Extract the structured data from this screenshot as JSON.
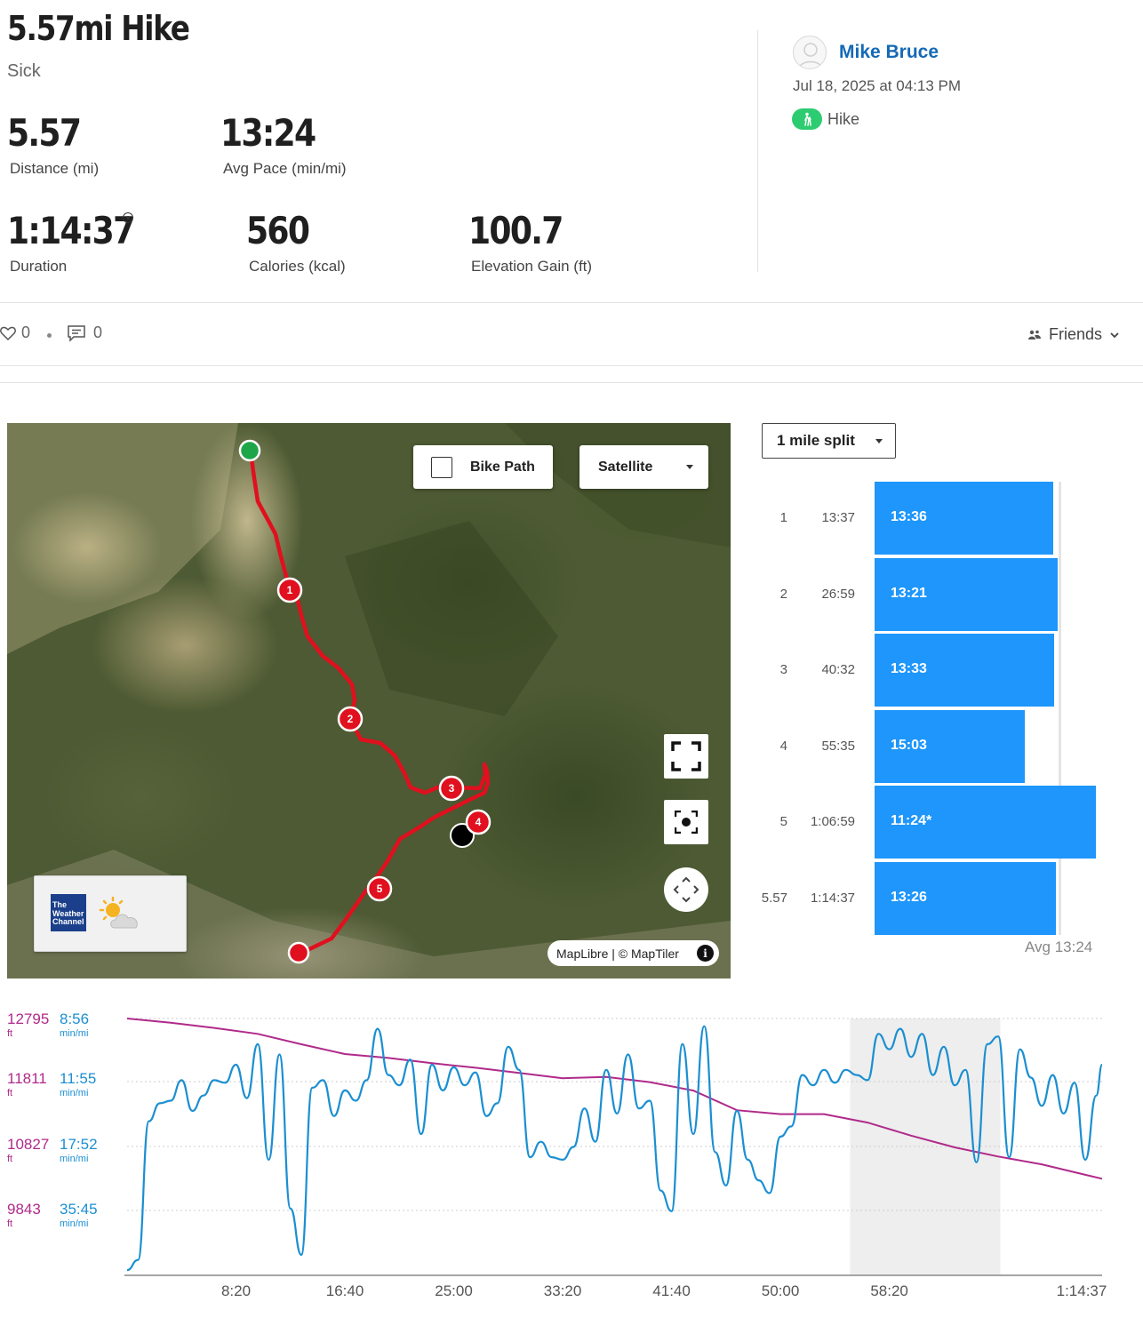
{
  "activity": {
    "title": "5.57mi Hike",
    "subtitle": "Sick"
  },
  "stats": {
    "distance": {
      "value": "5.57",
      "label": "Distance (mi)"
    },
    "avg_pace": {
      "value": "13:24",
      "label": "Avg Pace (min/mi)"
    },
    "duration": {
      "value": "1:14:37",
      "label": "Duration"
    },
    "calories": {
      "value": "560",
      "label": "Calories (kcal)"
    },
    "elevation_gain": {
      "value": "100.7",
      "label": "Elevation Gain (ft)"
    }
  },
  "user": {
    "name": "Mike Bruce",
    "datetime": "Jul 18, 2025 at 04:13 PM",
    "activity_type": "Hike",
    "activity_badge_color": "#2ecc71"
  },
  "social": {
    "likes": "0",
    "comments": "0",
    "privacy": "Friends"
  },
  "map": {
    "bike_path_label": "Bike Path",
    "bike_path_checked": false,
    "layer_select": "Satellite",
    "weather_brand": "The Weather Channel",
    "attribution": "MapLibre | © MapTiler",
    "info_glyph": "i",
    "route_color": "#e0101e",
    "markers": [
      "1",
      "2",
      "3",
      "4",
      "5"
    ]
  },
  "splits": {
    "selector": "1 mile split",
    "bar_color": "#1e96fb",
    "avg_label": "Avg 13:24",
    "rows": [
      {
        "mile": "1",
        "elapsed": "13:37",
        "pace": "13:36",
        "pace_min": 13.6
      },
      {
        "mile": "2",
        "elapsed": "26:59",
        "pace": "13:21",
        "pace_min": 13.35
      },
      {
        "mile": "3",
        "elapsed": "40:32",
        "pace": "13:33",
        "pace_min": 13.55
      },
      {
        "mile": "4",
        "elapsed": "55:35",
        "pace": "15:03",
        "pace_min": 15.05
      },
      {
        "mile": "5",
        "elapsed": "1:06:59",
        "pace": "11:24*",
        "pace_min": 11.4
      },
      {
        "mile": "5.57",
        "elapsed": "1:14:37",
        "pace": "13:26",
        "pace_min": 13.43
      }
    ]
  },
  "chart_data": {
    "type": "line",
    "x_tick_labels": [
      "8:20",
      "16:40",
      "25:00",
      "33:20",
      "41:40",
      "50:00",
      "58:20",
      "1:14:37"
    ],
    "x_ticks_seconds": [
      500,
      1000,
      1500,
      2000,
      2500,
      3000,
      3500,
      4477
    ],
    "x_range_seconds": [
      0,
      4477
    ],
    "elevation_axis": {
      "ticks": [
        "12795",
        "11811",
        "10827",
        "9843"
      ],
      "unit": "ft",
      "color": "#b02a8a",
      "range": [
        8859,
        12795
      ]
    },
    "pace_axis": {
      "ticks": [
        "8:56",
        "11:55",
        "17:52",
        "35:45"
      ],
      "unit": "min/mi",
      "color": "#1b8fd1"
    },
    "highlight_seconds": [
      3320,
      4010
    ],
    "series": [
      {
        "kind": "elevation",
        "x": [
          0,
          200,
          400,
          600,
          800,
          1000,
          1200,
          1400,
          1600,
          1800,
          2000,
          2200,
          2400,
          2600,
          2800,
          3000,
          3200,
          3400,
          3600,
          3800,
          4000,
          4200,
          4400,
          4477
        ],
        "y": [
          12795,
          12730,
          12650,
          12560,
          12400,
          12250,
          12190,
          12110,
          12040,
          11960,
          11880,
          11900,
          11820,
          11690,
          11390,
          11330,
          11330,
          11200,
          11000,
          10820,
          10680,
          10560,
          10400,
          10340
        ]
      },
      {
        "kind": "pace_position",
        "x": [
          0,
          50,
          100,
          150,
          200,
          250,
          300,
          350,
          400,
          450,
          500,
          550,
          600,
          650,
          700,
          750,
          800,
          850,
          900,
          950,
          1000,
          1050,
          1100,
          1150,
          1200,
          1250,
          1300,
          1350,
          1400,
          1450,
          1500,
          1550,
          1600,
          1650,
          1700,
          1750,
          1800,
          1850,
          1900,
          1950,
          2000,
          2050,
          2100,
          2150,
          2200,
          2250,
          2300,
          2350,
          2400,
          2450,
          2500,
          2550,
          2600,
          2650,
          2700,
          2750,
          2800,
          2850,
          2900,
          2950,
          3000,
          3050,
          3100,
          3150,
          3200,
          3250,
          3300,
          3350,
          3400,
          3450,
          3500,
          3550,
          3600,
          3650,
          3700,
          3750,
          3800,
          3850,
          3900,
          3950,
          4000,
          4050,
          4100,
          4150,
          4200,
          4250,
          4300,
          4350,
          4400,
          4450,
          4477
        ],
        "y": [
          0.02,
          0.06,
          0.6,
          0.67,
          0.68,
          0.76,
          0.64,
          0.7,
          0.76,
          0.75,
          0.82,
          0.69,
          0.9,
          0.45,
          0.86,
          0.26,
          0.08,
          0.73,
          0.76,
          0.62,
          0.72,
          0.68,
          0.76,
          0.96,
          0.78,
          0.74,
          0.84,
          0.55,
          0.82,
          0.72,
          0.81,
          0.74,
          0.79,
          0.62,
          0.67,
          0.89,
          0.8,
          0.46,
          0.52,
          0.46,
          0.45,
          0.5,
          0.65,
          0.52,
          0.8,
          0.63,
          0.86,
          0.65,
          0.68,
          0.33,
          0.25,
          0.9,
          0.55,
          0.97,
          0.48,
          0.35,
          0.64,
          0.45,
          0.37,
          0.32,
          0.54,
          0.58,
          0.78,
          0.74,
          0.8,
          0.75,
          0.8,
          0.78,
          0.76,
          0.94,
          0.88,
          0.96,
          0.85,
          0.94,
          0.78,
          0.89,
          0.74,
          0.8,
          0.44,
          0.9,
          0.93,
          0.46,
          0.88,
          0.77,
          0.66,
          0.78,
          0.63,
          0.75,
          0.45,
          0.7,
          0.82
        ]
      }
    ]
  }
}
